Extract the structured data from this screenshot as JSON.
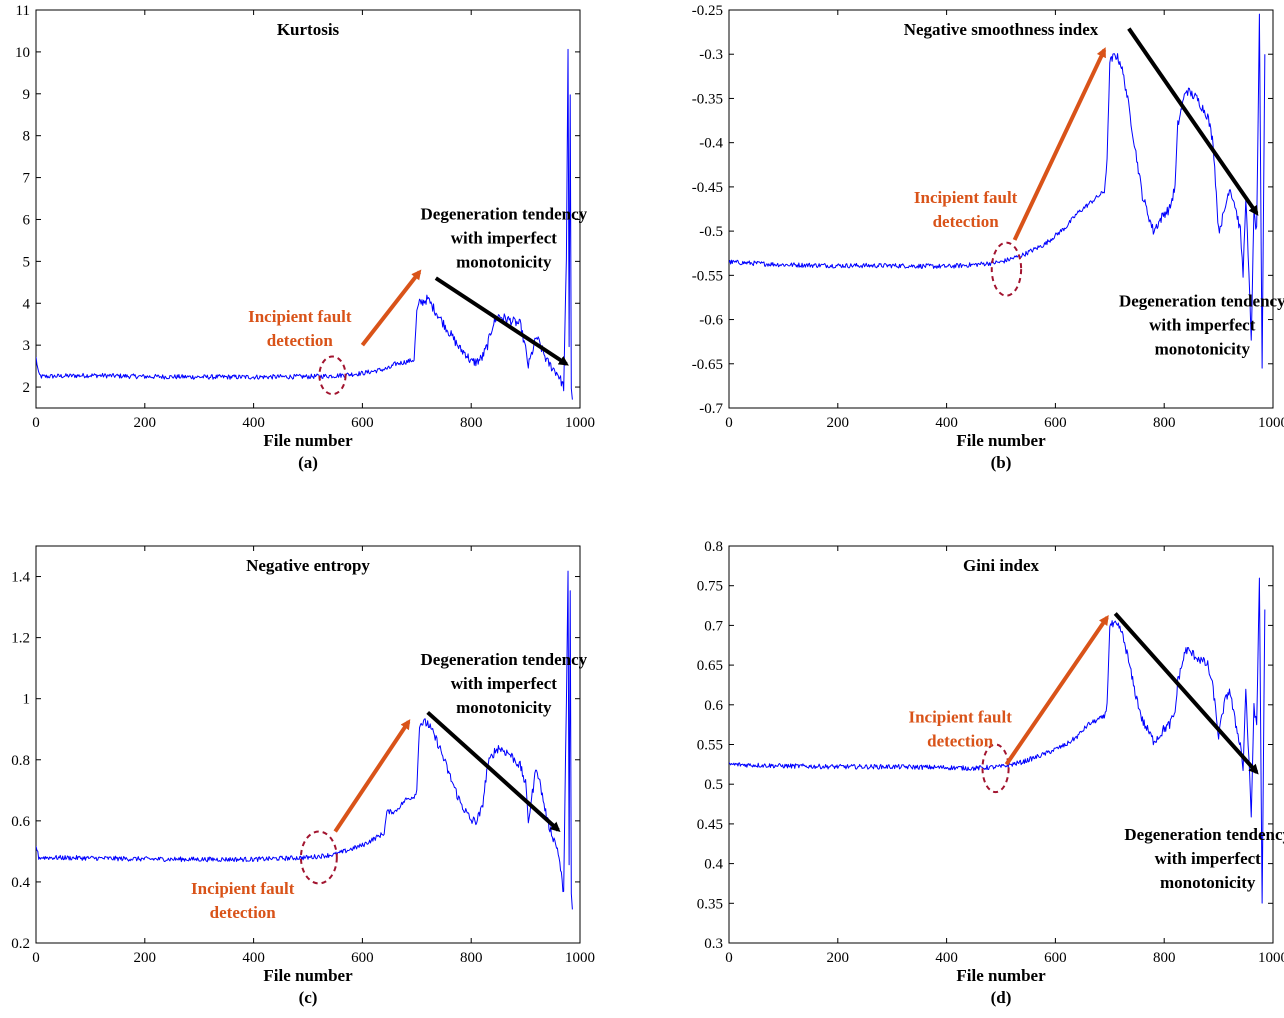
{
  "chart_data": [
    {
      "type": "line",
      "panel_label": "(a)",
      "title": "Kurtosis",
      "xlabel": "File number",
      "ylabel": "",
      "xlim": [
        0,
        1000
      ],
      "ylim": [
        1.5,
        11
      ],
      "xticks": [
        0,
        200,
        400,
        600,
        800,
        1000
      ],
      "yticks": [
        2,
        3,
        4,
        5,
        6,
        7,
        8,
        9,
        10,
        11
      ],
      "grid": false,
      "series": [
        {
          "color": "#0000ff",
          "x": [
            0,
            5,
            10,
            100,
            200,
            300,
            400,
            500,
            550,
            600,
            650,
            660,
            680,
            695,
            700,
            705,
            720,
            740,
            760,
            780,
            790,
            800,
            810,
            820,
            830,
            840,
            850,
            870,
            890,
            900,
            905,
            920,
            940,
            960,
            970,
            975,
            978,
            980,
            982,
            984,
            986
          ],
          "y": [
            2.7,
            2.3,
            2.25,
            2.28,
            2.25,
            2.24,
            2.24,
            2.25,
            2.27,
            2.33,
            2.45,
            2.55,
            2.6,
            2.65,
            3.8,
            4.0,
            4.1,
            3.7,
            3.3,
            2.9,
            2.8,
            2.6,
            2.6,
            2.7,
            3.0,
            3.5,
            3.7,
            3.6,
            3.5,
            2.9,
            2.5,
            3.2,
            2.6,
            2.3,
            2.0,
            5.0,
            10.1,
            3.0,
            9.0,
            2.0,
            1.7
          ]
        }
      ],
      "annotations": [
        {
          "lines": [
            "Incipient fault",
            "detection"
          ],
          "color": "#d95319",
          "near": [
            485,
            3.55
          ]
        },
        {
          "lines": [
            "Degeneration tendency",
            "with imperfect",
            "monotonicity"
          ],
          "color": "#000000",
          "near": [
            860,
            6.0
          ]
        }
      ],
      "arrows": [
        {
          "color": "#d95319",
          "from": [
            600,
            3.0
          ],
          "to": [
            705,
            4.75
          ]
        },
        {
          "color": "#000000",
          "from": [
            735,
            4.6
          ],
          "to": [
            975,
            2.55
          ]
        }
      ],
      "circle": {
        "center": [
          545,
          2.28
        ],
        "rx": 40,
        "ry": 0.45
      }
    },
    {
      "type": "line",
      "panel_label": "(b)",
      "title": "Negative smoothness index",
      "xlabel": "File number",
      "ylabel": "",
      "xlim": [
        0,
        1000
      ],
      "ylim": [
        -0.7,
        -0.25
      ],
      "xticks": [
        0,
        200,
        400,
        600,
        800,
        1000
      ],
      "yticks": [
        -0.7,
        -0.65,
        -0.6,
        -0.55,
        -0.5,
        -0.45,
        -0.4,
        -0.35,
        -0.3,
        -0.25
      ],
      "grid": false,
      "series": [
        {
          "color": "#0000ff",
          "x": [
            0,
            100,
            200,
            300,
            400,
            450,
            500,
            540,
            580,
            620,
            640,
            660,
            680,
            690,
            695,
            700,
            710,
            720,
            730,
            745,
            760,
            780,
            790,
            800,
            810,
            820,
            825,
            840,
            860,
            880,
            890,
            900,
            910,
            920,
            930,
            940,
            945,
            950,
            960,
            965,
            970,
            975,
            980,
            985
          ],
          "y": [
            -0.535,
            -0.538,
            -0.539,
            -0.539,
            -0.54,
            -0.538,
            -0.535,
            -0.527,
            -0.515,
            -0.495,
            -0.48,
            -0.47,
            -0.46,
            -0.455,
            -0.42,
            -0.31,
            -0.3,
            -0.31,
            -0.34,
            -0.4,
            -0.46,
            -0.5,
            -0.49,
            -0.48,
            -0.475,
            -0.45,
            -0.38,
            -0.34,
            -0.35,
            -0.37,
            -0.4,
            -0.5,
            -0.48,
            -0.45,
            -0.47,
            -0.5,
            -0.55,
            -0.46,
            -0.62,
            -0.48,
            -0.5,
            -0.26,
            -0.66,
            -0.3
          ]
        }
      ],
      "annotations": [
        {
          "lines": [
            "Incipient fault",
            "detection"
          ],
          "color": "#d95319",
          "near": [
            435,
            -0.468
          ]
        },
        {
          "lines": [
            "Degeneration tendency",
            "with imperfect",
            "monotonicity"
          ],
          "color": "#000000",
          "near": [
            870,
            -0.585
          ]
        }
      ],
      "arrows": [
        {
          "color": "#d95319",
          "from": [
            525,
            -0.51
          ],
          "to": [
            690,
            -0.295
          ]
        },
        {
          "color": "#000000",
          "from": [
            735,
            -0.271
          ],
          "to": [
            970,
            -0.48
          ]
        }
      ],
      "circle": {
        "center": [
          510,
          -0.543
        ],
        "rx": 45,
        "ry": 0.03
      }
    },
    {
      "type": "line",
      "panel_label": "(c)",
      "title": "Negative entropy",
      "xlabel": "File number",
      "ylabel": "",
      "xlim": [
        0,
        1000
      ],
      "ylim": [
        0.2,
        1.5
      ],
      "xticks": [
        0,
        200,
        400,
        600,
        800,
        1000
      ],
      "yticks": [
        0.2,
        0.4,
        0.6,
        0.8,
        1.0,
        1.2,
        1.4
      ],
      "grid": false,
      "series": [
        {
          "color": "#0000ff",
          "x": [
            0,
            5,
            10,
            100,
            200,
            300,
            400,
            500,
            550,
            600,
            640,
            645,
            660,
            680,
            695,
            700,
            705,
            720,
            740,
            760,
            780,
            790,
            800,
            810,
            820,
            830,
            840,
            850,
            870,
            890,
            900,
            905,
            920,
            940,
            960,
            970,
            975,
            978,
            980,
            982,
            984,
            986
          ],
          "y": [
            0.52,
            0.48,
            0.48,
            0.478,
            0.475,
            0.474,
            0.474,
            0.48,
            0.49,
            0.52,
            0.56,
            0.63,
            0.63,
            0.67,
            0.68,
            0.7,
            0.92,
            0.92,
            0.85,
            0.75,
            0.66,
            0.63,
            0.6,
            0.6,
            0.64,
            0.78,
            0.82,
            0.84,
            0.82,
            0.78,
            0.72,
            0.6,
            0.78,
            0.6,
            0.5,
            0.36,
            1.0,
            1.42,
            0.45,
            1.35,
            0.35,
            0.31
          ]
        }
      ],
      "annotations": [
        {
          "lines": [
            "Incipient fault",
            "detection"
          ],
          "color": "#d95319",
          "near": [
            380,
            0.36
          ]
        },
        {
          "lines": [
            "Degeneration tendency",
            "with imperfect",
            "monotonicity"
          ],
          "color": "#000000",
          "near": [
            860,
            1.11
          ]
        }
      ],
      "arrows": [
        {
          "color": "#d95319",
          "from": [
            550,
            0.565
          ],
          "to": [
            685,
            0.925
          ]
        },
        {
          "color": "#000000",
          "from": [
            720,
            0.955
          ],
          "to": [
            960,
            0.57
          ]
        }
      ],
      "circle": {
        "center": [
          520,
          0.48
        ],
        "rx": 55,
        "ry": 0.085
      }
    },
    {
      "type": "line",
      "panel_label": "(d)",
      "title": "Gini index",
      "xlabel": "File number",
      "ylabel": "",
      "xlim": [
        0,
        1000
      ],
      "ylim": [
        0.3,
        0.8
      ],
      "xticks": [
        0,
        200,
        400,
        600,
        800,
        1000
      ],
      "yticks": [
        0.3,
        0.35,
        0.4,
        0.45,
        0.5,
        0.55,
        0.6,
        0.65,
        0.7,
        0.75,
        0.8
      ],
      "grid": false,
      "series": [
        {
          "color": "#0000ff",
          "x": [
            0,
            100,
            200,
            300,
            400,
            450,
            500,
            540,
            580,
            620,
            640,
            660,
            680,
            690,
            695,
            700,
            710,
            720,
            730,
            745,
            760,
            780,
            790,
            800,
            810,
            820,
            825,
            840,
            860,
            880,
            890,
            900,
            910,
            920,
            930,
            940,
            945,
            950,
            960,
            965,
            970,
            975,
            980,
            985
          ],
          "y": [
            0.525,
            0.523,
            0.522,
            0.522,
            0.521,
            0.52,
            0.522,
            0.528,
            0.538,
            0.55,
            0.56,
            0.575,
            0.582,
            0.585,
            0.6,
            0.7,
            0.7,
            0.695,
            0.67,
            0.62,
            0.58,
            0.555,
            0.56,
            0.57,
            0.575,
            0.59,
            0.63,
            0.67,
            0.66,
            0.65,
            0.62,
            0.56,
            0.6,
            0.62,
            0.58,
            0.55,
            0.52,
            0.62,
            0.46,
            0.6,
            0.57,
            0.76,
            0.35,
            0.72
          ]
        }
      ],
      "annotations": [
        {
          "lines": [
            "Incipient fault",
            "detection"
          ],
          "color": "#d95319",
          "near": [
            425,
            0.578
          ]
        },
        {
          "lines": [
            "Degeneration tendency",
            "with imperfect",
            "monotonicity"
          ],
          "color": "#000000",
          "near": [
            880,
            0.43
          ]
        }
      ],
      "arrows": [
        {
          "color": "#d95319",
          "from": [
            510,
            0.525
          ],
          "to": [
            695,
            0.71
          ]
        },
        {
          "color": "#000000",
          "from": [
            710,
            0.715
          ],
          "to": [
            970,
            0.515
          ]
        }
      ],
      "circle": {
        "center": [
          490,
          0.52
        ],
        "rx": 40,
        "ry": 0.03
      }
    }
  ]
}
